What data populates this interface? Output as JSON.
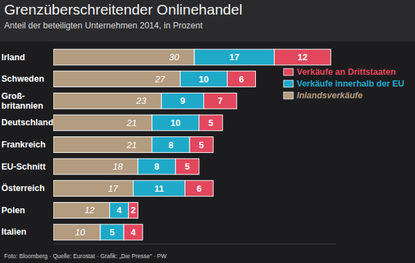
{
  "chart_data": {
    "type": "bar",
    "title": "Grenzüberschreitender Onlinehandel",
    "subtitle": "Anteil der beteiligten Unternehmen 2014, in Prozent",
    "source": "Foto: Bloomberg · Quelle: Eurostat · Grafik: „Die Presse“ · PW",
    "orientation": "horizontal",
    "stacked": true,
    "data_labels": true,
    "tick_labels": "y",
    "grid": false,
    "legend": "upper right",
    "categories": [
      "Irland",
      "Schweden",
      "Groß-\nbritannien",
      "Deutschland",
      "Frankreich",
      "EU-Schnitt",
      "Österreich",
      "Polen",
      "Italien"
    ],
    "xlim": [
      0,
      60
    ],
    "series": [
      {
        "name": "Inlandsverkäufe",
        "color": "#b39c7f",
        "values": [
          30,
          27,
          23,
          21,
          21,
          18,
          17,
          12,
          10
        ]
      },
      {
        "name": "Verkäufe innerhalb der EU",
        "color": "#1fa9c9",
        "values": [
          17,
          10,
          9,
          10,
          8,
          8,
          11,
          4,
          5
        ]
      },
      {
        "name": "Verkäufe an Drittstaaten",
        "color": "#e2475d",
        "values": [
          12,
          6,
          7,
          5,
          5,
          5,
          6,
          2,
          4
        ]
      }
    ]
  }
}
